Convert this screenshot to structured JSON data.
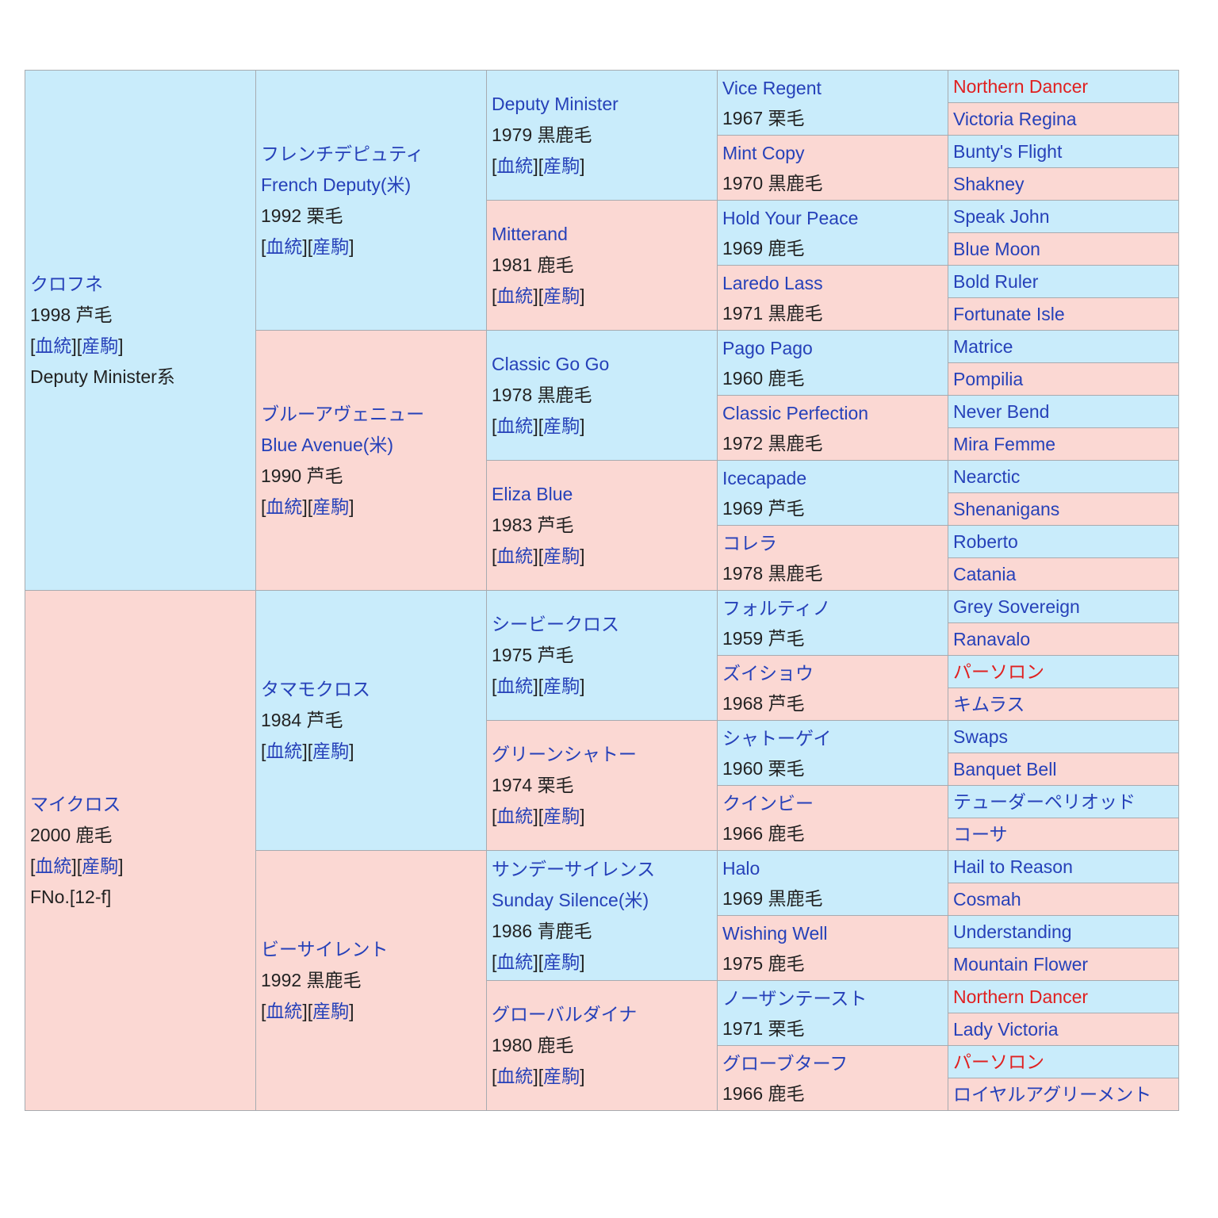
{
  "table": {
    "labels": {
      "pedigree": "血統",
      "progeny": "産駒",
      "lb": "[",
      "rb": "]"
    },
    "sire": {
      "name": "クロフネ",
      "year_color": "1998 芦毛",
      "line": "Deputy Minister系",
      "sire": {
        "name": "フレンチデピュティ",
        "name_en": "French Deputy(米)",
        "year_color": "1992 栗毛",
        "sire": {
          "name": "Deputy Minister",
          "year_color": "1979 黒鹿毛",
          "sire": {
            "name": "Vice Regent",
            "year_color": "1967 栗毛",
            "sire": "Northern Dancer",
            "dam": "Victoria Regina"
          },
          "dam": {
            "name": "Mint Copy",
            "year_color": "1970 黒鹿毛",
            "sire": "Bunty's Flight",
            "dam": "Shakney"
          }
        },
        "dam": {
          "name": "Mitterand",
          "year_color": "1981 鹿毛",
          "sire": {
            "name": "Hold Your Peace",
            "year_color": "1969 鹿毛",
            "sire": "Speak John",
            "dam": "Blue Moon"
          },
          "dam": {
            "name": "Laredo Lass",
            "year_color": "1971 黒鹿毛",
            "sire": "Bold Ruler",
            "dam": "Fortunate Isle"
          }
        }
      },
      "dam": {
        "name": "ブルーアヴェニュー",
        "name_en": "Blue Avenue(米)",
        "year_color": "1990 芦毛",
        "sire": {
          "name": "Classic Go Go",
          "year_color": "1978 黒鹿毛",
          "sire": {
            "name": "Pago Pago",
            "year_color": "1960 鹿毛",
            "sire": "Matrice",
            "dam": "Pompilia"
          },
          "dam": {
            "name": "Classic Perfection",
            "year_color": "1972 黒鹿毛",
            "sire": "Never Bend",
            "dam": "Mira Femme"
          }
        },
        "dam": {
          "name": "Eliza Blue",
          "year_color": "1983 芦毛",
          "sire": {
            "name": "Icecapade",
            "year_color": "1969 芦毛",
            "sire": "Nearctic",
            "dam": "Shenanigans"
          },
          "dam": {
            "name": "コレラ",
            "year_color": "1978 黒鹿毛",
            "sire": "Roberto",
            "dam": "Catania"
          }
        }
      }
    },
    "dam": {
      "name": "マイクロス",
      "year_color": "2000 鹿毛",
      "family": "FNo.[12-f]",
      "sire": {
        "name": "タマモクロス",
        "year_color": "1984 芦毛",
        "sire": {
          "name": "シービークロス",
          "year_color": "1975 芦毛",
          "sire": {
            "name": "フォルティノ",
            "year_color": "1959 芦毛",
            "sire": "Grey Sovereign",
            "dam": "Ranavalo"
          },
          "dam": {
            "name": "ズイショウ",
            "year_color": "1968 芦毛",
            "sire": "パーソロン",
            "dam": "キムラス"
          }
        },
        "dam": {
          "name": "グリーンシャトー",
          "year_color": "1974 栗毛",
          "sire": {
            "name": "シャトーゲイ",
            "year_color": "1960 栗毛",
            "sire": "Swaps",
            "dam": "Banquet Bell"
          },
          "dam": {
            "name": "クインビー",
            "year_color": "1966 鹿毛",
            "sire": "テューダーペリオッド",
            "dam": "コーサ"
          }
        }
      },
      "dam": {
        "name": "ビーサイレント",
        "year_color": "1992 黒鹿毛",
        "sire": {
          "name": "サンデーサイレンス",
          "name_en": "Sunday Silence(米)",
          "year_color": "1986 青鹿毛",
          "sire": {
            "name": "Halo",
            "year_color": "1969 黒鹿毛",
            "sire": "Hail to Reason",
            "dam": "Cosmah"
          },
          "dam": {
            "name": "Wishing Well",
            "year_color": "1975 鹿毛",
            "sire": "Understanding",
            "dam": "Mountain Flower"
          }
        },
        "dam": {
          "name": "グローバルダイナ",
          "year_color": "1980 鹿毛",
          "sire": {
            "name": "ノーザンテースト",
            "year_color": "1971 栗毛",
            "sire": "Northern Dancer",
            "dam": "Lady Victoria"
          },
          "dam": {
            "name": "グローブターフ",
            "year_color": "1966 鹿毛",
            "sire": "パーソロン",
            "dam": "ロイヤルアグリーメント"
          }
        }
      }
    }
  },
  "colors": {
    "male_bg": "#c9ecfb",
    "female_bg": "#fbd8d3",
    "link": "#2641b9",
    "inbreed_link": "#e02020",
    "border": "#a7abb0"
  },
  "inbreeding_highlight": [
    "Northern Dancer",
    "パーソロン"
  ]
}
